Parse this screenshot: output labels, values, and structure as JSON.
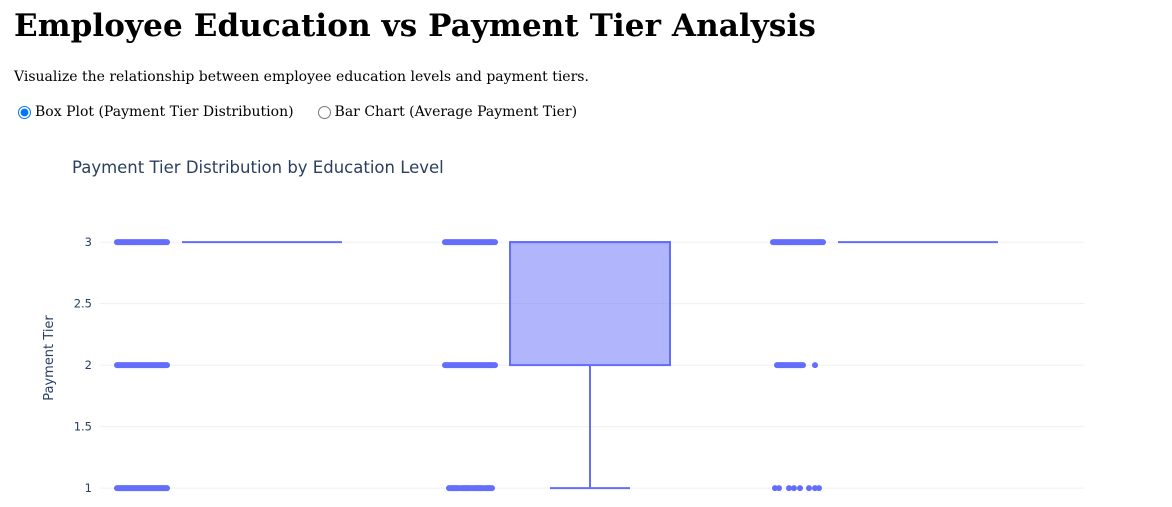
{
  "page": {
    "title": "Employee Education vs Payment Tier Analysis",
    "description": "Visualize the relationship between employee education levels and payment tiers."
  },
  "controls": {
    "options": [
      {
        "label": "Box Plot (Payment Tier Distribution)",
        "checked": true
      },
      {
        "label": "Bar Chart (Average Payment Tier)",
        "checked": false
      }
    ]
  },
  "chart_data": {
    "type": "box",
    "title": "Payment Tier Distribution by Education Level",
    "ylabel": "Payment Tier",
    "xlabel": "",
    "ylim": [
      0.96,
      3.44
    ],
    "yticks": [
      1,
      1.5,
      2,
      2.5,
      3
    ],
    "grid": true,
    "color": "#636efa",
    "fill": "rgba(99,110,250,0.5)",
    "boxes": [
      {
        "q1": 3,
        "median": 3,
        "q3": 3,
        "lowerfence": 3,
        "upperfence": 3,
        "outliers": [
          {
            "y": 3,
            "dense": true
          },
          {
            "y": 2,
            "dense": true
          },
          {
            "y": 1,
            "dense": true
          }
        ]
      },
      {
        "q1": 2,
        "median": 3,
        "q3": 3,
        "lowerfence": 1,
        "upperfence": 3,
        "outliers": [
          {
            "y": 3,
            "dense": true
          },
          {
            "y": 2,
            "dense": true
          },
          {
            "y": 1,
            "dense": false
          }
        ]
      },
      {
        "q1": 3,
        "median": 3,
        "q3": 3,
        "lowerfence": 3,
        "upperfence": 3,
        "outliers": [
          {
            "y": 3,
            "dense": true
          },
          {
            "y": 2,
            "dense": false,
            "extra": true
          },
          {
            "y": 1,
            "dense": false,
            "sparse": true
          }
        ]
      }
    ]
  }
}
